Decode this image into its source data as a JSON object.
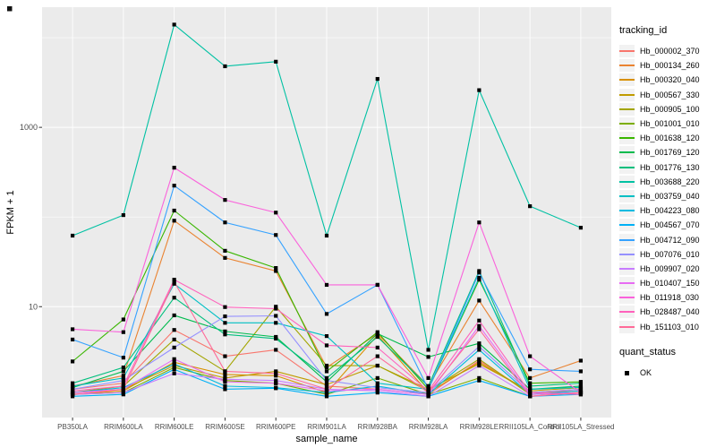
{
  "figure": {
    "background": "#FFFFFF",
    "panel_background": "#EBEBEB",
    "gridline_color": "#FFFFFF",
    "axis_text_color": "#4D4D4D",
    "point_color": "#000000"
  },
  "chart_data": {
    "type": "line",
    "title": "",
    "xlabel": "sample_name",
    "ylabel": "FPKM + 1",
    "y_scale": "log10",
    "ylim": [
      0.58,
      21900
    ],
    "grid": true,
    "legend_position": "right",
    "y_major_ticks": [
      {
        "value": 10,
        "label": "10"
      },
      {
        "value": 1000,
        "label": "1000"
      }
    ],
    "y_minor_gridlines": [
      100,
      10000
    ],
    "categories": [
      "PB350LA",
      "RRIM600LA",
      "RRIM600LE",
      "RRIM600SE",
      "RRIM600PE",
      "RRIM901LA",
      "RRIM928BA",
      "RRIM928LA",
      "RRIM928LE",
      "RRII105LA_Control",
      "RRII105LA_Stressed"
    ],
    "series": [
      {
        "name": "Hb_000002_370",
        "color": "#F8766D",
        "values": [
          1.2,
          1.4,
          5.5,
          2.8,
          3.3,
          1.3,
          1.2,
          1.05,
          2.5,
          1.1,
          1.15
        ]
      },
      {
        "name": "Hb_000134_260",
        "color": "#EA8331",
        "values": [
          1.3,
          1.7,
          91,
          35,
          25,
          2.1,
          5.0,
          1.3,
          11.7,
          1.6,
          2.5
        ]
      },
      {
        "name": "Hb_000320_040",
        "color": "#D89000",
        "values": [
          1.05,
          1.15,
          2.4,
          1.75,
          1.7,
          1.1,
          4.8,
          1.1,
          2.4,
          1.1,
          1.2
        ]
      },
      {
        "name": "Hb_000567_330",
        "color": "#C09B00",
        "values": [
          1.1,
          1.2,
          2.2,
          1.6,
          1.9,
          1.35,
          2.2,
          1.2,
          2.3,
          1.15,
          1.25
        ]
      },
      {
        "name": "Hb_000905_100",
        "color": "#A3A500",
        "values": [
          1.1,
          1.3,
          4.3,
          1.9,
          10,
          2.2,
          2.2,
          1.15,
          2.6,
          1.05,
          1.1
        ]
      },
      {
        "name": "Hb_001001_010",
        "color": "#7CAE00",
        "values": [
          1.05,
          1.1,
          2.1,
          1.5,
          1.4,
          1.05,
          1.6,
          1.05,
          1.6,
          1.0,
          1.1
        ]
      },
      {
        "name": "Hb_001638_120",
        "color": "#39B600",
        "values": [
          2.45,
          7.2,
          118,
          42,
          27,
          1.9,
          5.2,
          1.2,
          20,
          1.4,
          1.45
        ]
      },
      {
        "name": "Hb_001769_120",
        "color": "#00BB4E",
        "values": [
          1.25,
          1.9,
          8.0,
          5.3,
          4.6,
          1.45,
          5.0,
          2.75,
          3.9,
          1.2,
          1.3
        ]
      },
      {
        "name": "Hb_001776_130",
        "color": "#00BF7D",
        "values": [
          1.4,
          2.1,
          12.6,
          4.9,
          4.4,
          1.6,
          4.6,
          1.3,
          25,
          1.3,
          1.4
        ]
      },
      {
        "name": "Hb_003688_220",
        "color": "#00C1A3",
        "values": [
          62,
          105,
          14000,
          4800,
          5400,
          62,
          3470,
          3.3,
          2600,
          132,
          76
        ]
      },
      {
        "name": "Hb_003759_040",
        "color": "#00BFC4",
        "values": [
          1.3,
          1.6,
          18,
          6.6,
          6.6,
          4.7,
          1.4,
          1.2,
          21,
          1.2,
          1.26
        ]
      },
      {
        "name": "Hb_004223_080",
        "color": "#00BAE0",
        "values": [
          1.1,
          1.25,
          2.3,
          1.3,
          1.25,
          1.1,
          1.3,
          1.05,
          3.3,
          1.05,
          1.15
        ]
      },
      {
        "name": "Hb_004567_070",
        "color": "#00B0F6",
        "values": [
          1.0,
          1.05,
          2.0,
          1.2,
          1.23,
          1.0,
          1.1,
          1.0,
          1.5,
          1.0,
          1.05
        ]
      },
      {
        "name": "Hb_004712_090",
        "color": "#35A2FF",
        "values": [
          4.3,
          2.7,
          224,
          87,
          63,
          8.3,
          17.5,
          1.2,
          24,
          2.0,
          1.9
        ]
      },
      {
        "name": "Hb_007076_010",
        "color": "#9590FF",
        "values": [
          1.2,
          1.5,
          3.5,
          7.8,
          7.9,
          1.5,
          1.25,
          1.1,
          3.6,
          1.1,
          1.2
        ]
      },
      {
        "name": "Hb_009907_020",
        "color": "#C77CFF",
        "values": [
          1.05,
          1.1,
          1.8,
          1.55,
          1.5,
          1.2,
          1.15,
          1.0,
          2.2,
          1.0,
          1.1
        ]
      },
      {
        "name": "Hb_010407_150",
        "color": "#E76BF3",
        "values": [
          1.1,
          1.2,
          2.6,
          1.45,
          1.4,
          1.15,
          1.2,
          1.05,
          6.1,
          1.05,
          1.1
        ]
      },
      {
        "name": "Hb_011918_030",
        "color": "#FA62DB",
        "values": [
          5.6,
          5.2,
          355,
          155,
          112,
          17.5,
          17.5,
          1.6,
          87,
          2.8,
          1.1
        ]
      },
      {
        "name": "Hb_028487_040",
        "color": "#FF62BC",
        "values": [
          1.15,
          1.3,
          20,
          9.9,
          9.5,
          3.7,
          3.5,
          1.15,
          7.0,
          1.1,
          1.05
        ]
      },
      {
        "name": "Hb_151103_010",
        "color": "#FF6A98",
        "values": [
          1.05,
          1.2,
          19,
          1.9,
          1.8,
          1.2,
          2.8,
          1.1,
          5.6,
          1.0,
          1.1
        ]
      }
    ],
    "legend": {
      "color_title": "tracking_id",
      "shape_title": "quant_status",
      "shape_items": [
        {
          "label": "OK"
        }
      ]
    }
  }
}
